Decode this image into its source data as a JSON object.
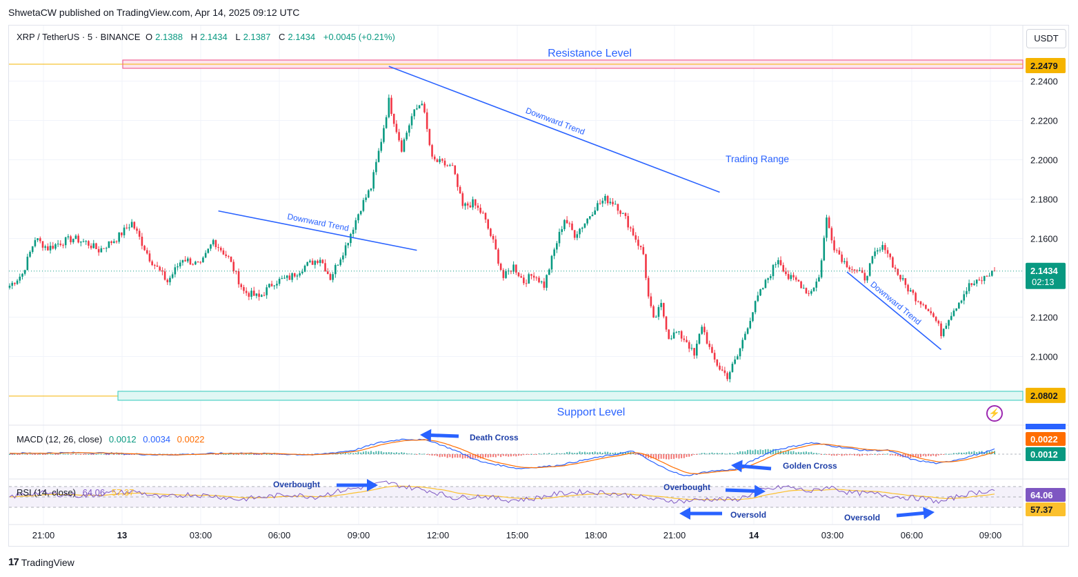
{
  "header": {
    "published": "ShwetaCW published on TradingView.com, Apr 14, 2025 09:12 UTC"
  },
  "symbol": {
    "name": "XRP / TetherUS · 5 · BINANCE",
    "o_label": "O",
    "o_value": "2.1388",
    "h_label": "H",
    "h_value": "2.1434",
    "l_label": "L",
    "l_value": "2.1387",
    "c_label": "C",
    "c_value": "2.1434",
    "change": "+0.0045 (+0.21%)"
  },
  "currency_button": "USDT",
  "footer": {
    "brand": "TradingView",
    "logo_mark": "17"
  },
  "colors": {
    "up": "#089981",
    "down": "#f23645",
    "trend": "#2962ff",
    "resistance": "#f48fb1",
    "support": "#4dd0c4",
    "macd": "#2962ff",
    "signal": "#ff6d00",
    "rsi": "#7e57c2",
    "rsi_ma": "#fbc02d",
    "annotation_arrow": "#2962ff"
  },
  "icons": {
    "alert": "lightning-icon"
  },
  "chart_data": {
    "type": "candlestick",
    "timeframe": "5",
    "price_axis": {
      "ticks": [
        "2.2400",
        "2.2200",
        "2.2000",
        "2.1800",
        "2.1600",
        "2.1400",
        "2.1200",
        "2.1000"
      ],
      "range": [
        2.078,
        2.254
      ]
    },
    "time_axis": {
      "ticks": [
        "21:00",
        "13",
        "03:00",
        "06:00",
        "09:00",
        "12:00",
        "15:00",
        "18:00",
        "21:00",
        "14",
        "03:00",
        "06:00",
        "09:00"
      ]
    },
    "close_path": [
      [
        0,
        2.136
      ],
      [
        5,
        2.142
      ],
      [
        10,
        2.16
      ],
      [
        15,
        2.155
      ],
      [
        20,
        2.158
      ],
      [
        25,
        2.16
      ],
      [
        30,
        2.158
      ],
      [
        35,
        2.154
      ],
      [
        42,
        2.16
      ],
      [
        48,
        2.168
      ],
      [
        55,
        2.15
      ],
      [
        62,
        2.138
      ],
      [
        68,
        2.15
      ],
      [
        75,
        2.146
      ],
      [
        80,
        2.159
      ],
      [
        86,
        2.15
      ],
      [
        92,
        2.133
      ],
      [
        98,
        2.13
      ],
      [
        104,
        2.138
      ],
      [
        110,
        2.14
      ],
      [
        116,
        2.146
      ],
      [
        122,
        2.15
      ],
      [
        126,
        2.14
      ],
      [
        132,
        2.156
      ],
      [
        138,
        2.176
      ],
      [
        142,
        2.186
      ],
      [
        146,
        2.21
      ],
      [
        149,
        2.23
      ],
      [
        151,
        2.22
      ],
      [
        154,
        2.206
      ],
      [
        158,
        2.222
      ],
      [
        162,
        2.23
      ],
      [
        166,
        2.2
      ],
      [
        170,
        2.198
      ],
      [
        174,
        2.196
      ],
      [
        178,
        2.176
      ],
      [
        182,
        2.178
      ],
      [
        186,
        2.172
      ],
      [
        190,
        2.158
      ],
      [
        194,
        2.14
      ],
      [
        198,
        2.146
      ],
      [
        202,
        2.138
      ],
      [
        206,
        2.142
      ],
      [
        210,
        2.136
      ],
      [
        214,
        2.154
      ],
      [
        218,
        2.17
      ],
      [
        222,
        2.162
      ],
      [
        226,
        2.168
      ],
      [
        230,
        2.176
      ],
      [
        234,
        2.18
      ],
      [
        238,
        2.178
      ],
      [
        242,
        2.17
      ],
      [
        246,
        2.16
      ],
      [
        249,
        2.152
      ],
      [
        251,
        2.13
      ],
      [
        253,
        2.118
      ],
      [
        256,
        2.126
      ],
      [
        259,
        2.11
      ],
      [
        262,
        2.112
      ],
      [
        266,
        2.108
      ],
      [
        269,
        2.1
      ],
      [
        272,
        2.116
      ],
      [
        276,
        2.1
      ],
      [
        279,
        2.094
      ],
      [
        282,
        2.09
      ],
      [
        286,
        2.1
      ],
      [
        290,
        2.116
      ],
      [
        294,
        2.13
      ],
      [
        298,
        2.14
      ],
      [
        302,
        2.15
      ],
      [
        306,
        2.14
      ],
      [
        310,
        2.138
      ],
      [
        314,
        2.132
      ],
      [
        318,
        2.14
      ],
      [
        321,
        2.17
      ],
      [
        324,
        2.156
      ],
      [
        328,
        2.148
      ],
      [
        332,
        2.144
      ],
      [
        336,
        2.14
      ],
      [
        340,
        2.152
      ],
      [
        344,
        2.156
      ],
      [
        348,
        2.144
      ],
      [
        352,
        2.136
      ],
      [
        356,
        2.13
      ],
      [
        360,
        2.126
      ],
      [
        364,
        2.118
      ],
      [
        366,
        2.112
      ],
      [
        369,
        2.12
      ],
      [
        373,
        2.128
      ],
      [
        377,
        2.136
      ],
      [
        381,
        2.138
      ],
      [
        385,
        2.142
      ],
      [
        387,
        2.143
      ]
    ],
    "annotations": {
      "resistance": {
        "label": "Resistance Level",
        "value": "2.2479"
      },
      "support": {
        "label": "Support Level",
        "value": "2.0802"
      },
      "trend_label": "Downward Trend",
      "range_label": "Trading Range",
      "current_price": "2.1434",
      "countdown": "02:13"
    }
  },
  "indicators": {
    "macd": {
      "name": "MACD (12, 26, close)",
      "hist": "0.0012",
      "macd": "0.0034",
      "signal": "0.0022",
      "axis_top": "0.0034",
      "axis_labels": [
        "0.0022",
        "0.0012"
      ],
      "path": [
        [
          0,
          0.0002
        ],
        [
          30,
          0.0004
        ],
        [
          60,
          -0.0002
        ],
        [
          90,
          0.0003
        ],
        [
          120,
          -0.0002
        ],
        [
          135,
          0.001
        ],
        [
          145,
          0.003
        ],
        [
          155,
          0.004
        ],
        [
          165,
          0.0036
        ],
        [
          175,
          0.001
        ],
        [
          185,
          -0.002
        ],
        [
          200,
          -0.0038
        ],
        [
          215,
          -0.003
        ],
        [
          230,
          -0.001
        ],
        [
          245,
          0.0008
        ],
        [
          255,
          -0.003
        ],
        [
          265,
          -0.0058
        ],
        [
          275,
          -0.0045
        ],
        [
          285,
          -0.004
        ],
        [
          300,
          0.001
        ],
        [
          315,
          0.003
        ],
        [
          325,
          0.002
        ],
        [
          335,
          0.001
        ],
        [
          345,
          0.001
        ],
        [
          355,
          -0.0015
        ],
        [
          365,
          -0.0025
        ],
        [
          375,
          -0.001
        ],
        [
          387,
          0.0012
        ]
      ],
      "annotations": [
        "Death Cross",
        "Golden Cross"
      ]
    },
    "rsi": {
      "name": "RSI (14, close)",
      "rsi": "64.06",
      "ma": "57.37",
      "axis_labels": [
        "64.06",
        "57.37"
      ],
      "path": [
        [
          0,
          50
        ],
        [
          10,
          58
        ],
        [
          20,
          55
        ],
        [
          30,
          52
        ],
        [
          40,
          58
        ],
        [
          50,
          60
        ],
        [
          60,
          48
        ],
        [
          70,
          55
        ],
        [
          80,
          52
        ],
        [
          90,
          45
        ],
        [
          100,
          50
        ],
        [
          110,
          55
        ],
        [
          120,
          50
        ],
        [
          130,
          62
        ],
        [
          140,
          70
        ],
        [
          148,
          78
        ],
        [
          155,
          70
        ],
        [
          165,
          62
        ],
        [
          175,
          48
        ],
        [
          185,
          52
        ],
        [
          195,
          44
        ],
        [
          205,
          46
        ],
        [
          215,
          56
        ],
        [
          225,
          60
        ],
        [
          235,
          58
        ],
        [
          245,
          52
        ],
        [
          255,
          44
        ],
        [
          265,
          42
        ],
        [
          275,
          46
        ],
        [
          285,
          44
        ],
        [
          295,
          62
        ],
        [
          305,
          70
        ],
        [
          315,
          60
        ],
        [
          322,
          70
        ],
        [
          330,
          58
        ],
        [
          340,
          56
        ],
        [
          350,
          50
        ],
        [
          360,
          46
        ],
        [
          366,
          40
        ],
        [
          375,
          55
        ],
        [
          387,
          64
        ]
      ],
      "annotations": [
        "Overbought",
        "Overbought",
        "Oversold",
        "Oversold"
      ]
    }
  }
}
